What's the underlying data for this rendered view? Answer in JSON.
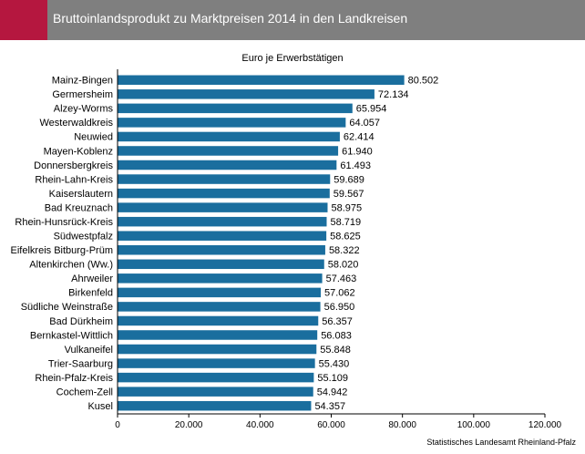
{
  "header": {
    "title": "Bruttoinlandsprodukt zu Marktpreisen 2014 in den Landkreisen"
  },
  "source": "Statistisches Landesamt Rheinland-Pfalz",
  "colors": {
    "header_bg": "#7f7f7f",
    "header_accent": "#b5173f",
    "bar": "#1a6e9e"
  },
  "chart_data": {
    "type": "bar",
    "orientation": "horizontal",
    "title": "Bruttoinlandsprodukt zu Marktpreisen 2014 in den Landkreisen",
    "subtitle": "Euro je Erwerbstätigen",
    "categories": [
      "Mainz-Bingen",
      "Germersheim",
      "Alzey-Worms",
      "Westerwaldkreis",
      "Neuwied",
      "Mayen-Koblenz",
      "Donnersbergkreis",
      "Rhein-Lahn-Kreis",
      "Kaiserslautern",
      "Bad Kreuznach",
      "Rhein-Hunsrück-Kreis",
      "Südwestpfalz",
      "Eifelkreis Bitburg-Prüm",
      "Altenkirchen (Ww.)",
      "Ahrweiler",
      "Birkenfeld",
      "Südliche Weinstraße",
      "Bad Dürkheim",
      "Bernkastel-Wittlich",
      "Vulkaneifel",
      "Trier-Saarburg",
      "Rhein-Pfalz-Kreis",
      "Cochem-Zell",
      "Kusel"
    ],
    "values": [
      80502,
      72134,
      65954,
      64057,
      62414,
      61940,
      61493,
      59689,
      59567,
      58975,
      58719,
      58625,
      58322,
      58020,
      57463,
      57062,
      56950,
      56357,
      56083,
      55848,
      55430,
      55109,
      54942,
      54357
    ],
    "value_labels": [
      "80.502",
      "72.134",
      "65.954",
      "64.057",
      "62.414",
      "61.940",
      "61.493",
      "59.689",
      "59.567",
      "58.975",
      "58.719",
      "58.625",
      "58.322",
      "58.020",
      "57.463",
      "57.062",
      "56.950",
      "56.357",
      "56.083",
      "55.848",
      "55.430",
      "55.109",
      "54.942",
      "54.357"
    ],
    "xlim": [
      0,
      120000
    ],
    "x_ticks": [
      0,
      20000,
      40000,
      60000,
      80000,
      100000,
      120000
    ],
    "x_tick_labels": [
      "0",
      "20.000",
      "40.000",
      "60.000",
      "80.000",
      "100.000",
      "120.000"
    ],
    "grid": false,
    "legend": "none"
  }
}
